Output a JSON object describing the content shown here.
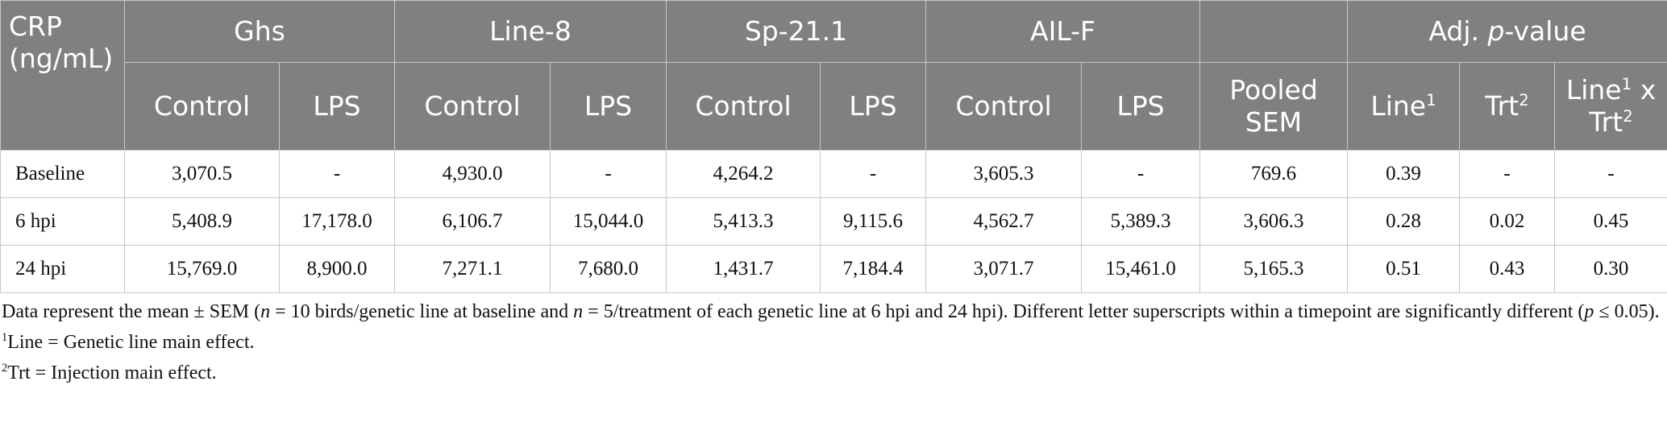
{
  "table": {
    "header": {
      "corner": "CRP (ng/mL)",
      "groups": [
        "Ghs",
        "Line-8",
        "Sp-21.1",
        "AIL-F"
      ],
      "pvalue_group": [
        "Adj. ",
        "p",
        "-value"
      ],
      "subheaders": [
        "Control",
        "LPS",
        "Control",
        "LPS",
        "Control",
        "LPS",
        "Control",
        "LPS"
      ],
      "pooled": "Pooled SEM",
      "pvalue_cols": [
        [
          "Line",
          "1"
        ],
        [
          "Trt",
          "2"
        ],
        [
          "Line",
          "1",
          " x Trt",
          "2"
        ]
      ]
    },
    "rows": [
      [
        "Baseline",
        "3,070.5",
        "-",
        "4,930.0",
        "-",
        "4,264.2",
        "-",
        "3,605.3",
        "-",
        "769.6",
        "0.39",
        "-",
        "-"
      ],
      [
        "6 hpi",
        "5,408.9",
        "17,178.0",
        "6,106.7",
        "15,044.0",
        "5,413.3",
        "9,115.6",
        "4,562.7",
        "5,389.3",
        "3,606.3",
        "0.28",
        "0.02",
        "0.45"
      ],
      [
        "24 hpi",
        "15,769.0",
        "8,900.0",
        "7,271.1",
        "7,680.0",
        "1,431.7",
        "7,184.4",
        "3,071.7",
        "15,461.0",
        "5,165.3",
        "0.51",
        "0.43",
        "0.30"
      ]
    ]
  },
  "notes": [
    [
      "Data represent the mean ± SEM (",
      "n",
      " = 10 birds/genetic line at baseline and ",
      "n",
      " = 5/treatment of each genetic line at 6 hpi and 24 hpi). Different letter superscripts within a timepoint are significantly different (",
      "p",
      " ≤ 0.05)."
    ],
    [
      "1",
      "Line = Genetic line main effect."
    ],
    [
      "2",
      "Trt = Injection main effect."
    ]
  ]
}
